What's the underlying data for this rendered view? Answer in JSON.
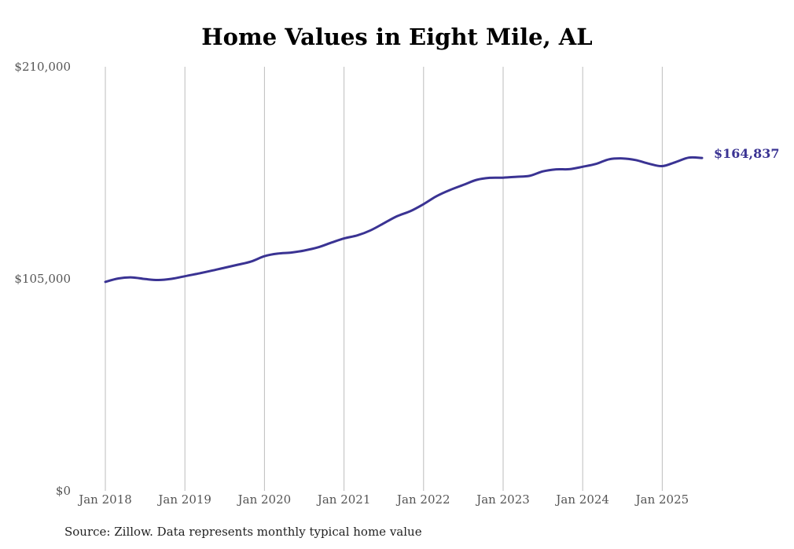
{
  "chart_data": {
    "type": "line",
    "title": "Home Values in Eight Mile, AL",
    "xlabel": "",
    "ylabel": "",
    "ylim": [
      0,
      210000
    ],
    "y_ticks": [
      {
        "value": 0,
        "label": "$0"
      },
      {
        "value": 105000,
        "label": "$105,000"
      },
      {
        "value": 210000,
        "label": "$210,000"
      }
    ],
    "x_ticks": [
      {
        "value": 2018,
        "label": "Jan 2018"
      },
      {
        "value": 2019,
        "label": "Jan 2019"
      },
      {
        "value": 2020,
        "label": "Jan 2020"
      },
      {
        "value": 2021,
        "label": "Jan 2021"
      },
      {
        "value": 2022,
        "label": "Jan 2022"
      },
      {
        "value": 2023,
        "label": "Jan 2023"
      },
      {
        "value": 2024,
        "label": "Jan 2024"
      },
      {
        "value": 2025,
        "label": "Jan 2025"
      }
    ],
    "grid": "vertical",
    "line_color": "#3a3393",
    "end_label": "$164,837",
    "series": [
      {
        "points": [
          [
            "2018-01",
            103500
          ],
          [
            "2018-03",
            105200
          ],
          [
            "2018-05",
            105700
          ],
          [
            "2018-07",
            104900
          ],
          [
            "2018-09",
            104400
          ],
          [
            "2018-11",
            105000
          ],
          [
            "2019-01",
            106300
          ],
          [
            "2019-03",
            107600
          ],
          [
            "2019-05",
            109000
          ],
          [
            "2019-07",
            110500
          ],
          [
            "2019-09",
            112000
          ],
          [
            "2019-11",
            113600
          ],
          [
            "2020-01",
            116200
          ],
          [
            "2020-03",
            117500
          ],
          [
            "2020-05",
            118000
          ],
          [
            "2020-07",
            119000
          ],
          [
            "2020-09",
            120500
          ],
          [
            "2020-11",
            122800
          ],
          [
            "2021-01",
            125000
          ],
          [
            "2021-03",
            126500
          ],
          [
            "2021-05",
            129000
          ],
          [
            "2021-07",
            132500
          ],
          [
            "2021-09",
            136000
          ],
          [
            "2021-11",
            138500
          ],
          [
            "2022-01",
            142000
          ],
          [
            "2022-03",
            146000
          ],
          [
            "2022-05",
            149000
          ],
          [
            "2022-07",
            151500
          ],
          [
            "2022-09",
            154000
          ],
          [
            "2022-11",
            155000
          ],
          [
            "2023-01",
            155100
          ],
          [
            "2023-03",
            155500
          ],
          [
            "2023-05",
            156000
          ],
          [
            "2023-07",
            158200
          ],
          [
            "2023-09",
            159200
          ],
          [
            "2023-11",
            159300
          ],
          [
            "2024-01",
            160500
          ],
          [
            "2024-03",
            161900
          ],
          [
            "2024-05",
            164200
          ],
          [
            "2024-07",
            164600
          ],
          [
            "2024-09",
            163800
          ],
          [
            "2024-11",
            162000
          ],
          [
            "2025-01",
            160800
          ],
          [
            "2025-03",
            162800
          ],
          [
            "2025-05",
            165000
          ],
          [
            "2025-07",
            164837
          ]
        ]
      }
    ],
    "source": "Source: Zillow. Data represents monthly typical home value"
  }
}
